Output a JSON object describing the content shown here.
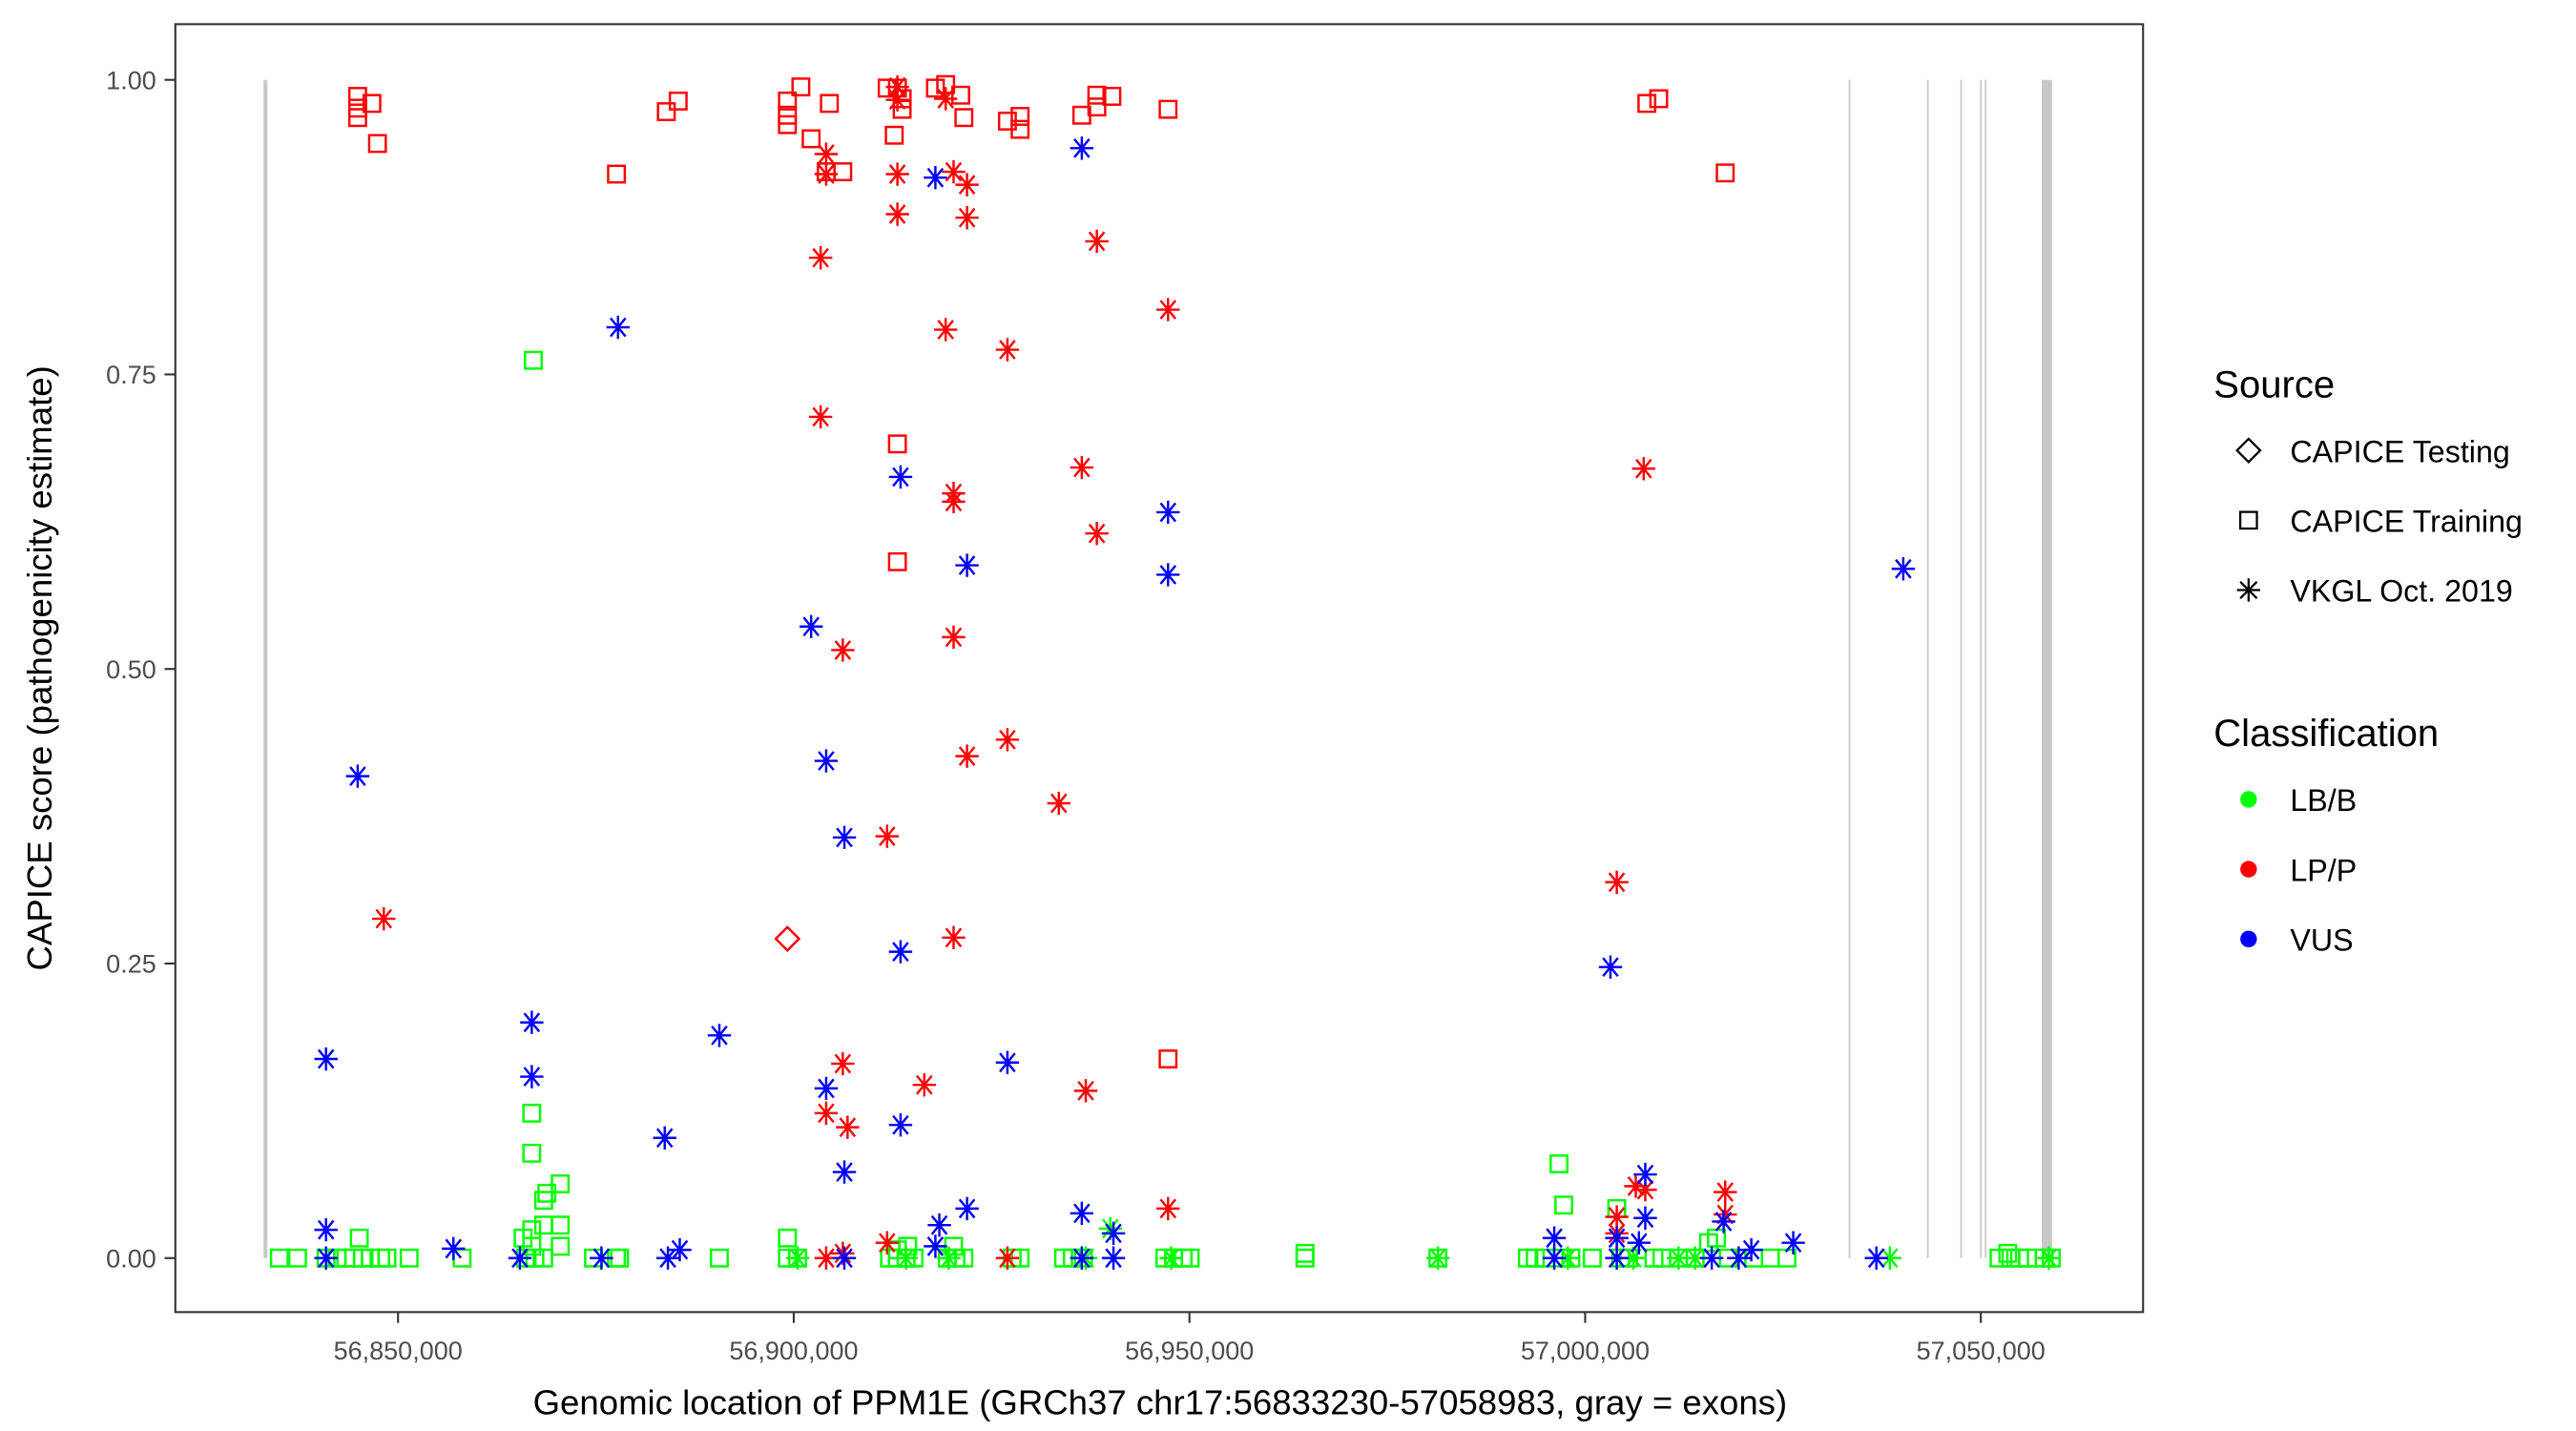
{
  "chart_data": {
    "type": "scatter",
    "xlabel": "Genomic location of PPM1E (GRCh37 chr17:56833230-57058983, gray = exons)",
    "ylabel": "CAPICE score (pathogenicity estimate)",
    "xlim": [
      56826000,
      57077000
    ],
    "ylim": [
      -0.045,
      1.05
    ],
    "grid": false,
    "xticks": [
      {
        "value": 56850000,
        "label": "56,850,000"
      },
      {
        "value": 56900000,
        "label": "56,900,000"
      },
      {
        "value": 56950000,
        "label": "56,950,000"
      },
      {
        "value": 57000000,
        "label": "57,000,000"
      },
      {
        "value": 57050000,
        "label": "57,050,000"
      }
    ],
    "yticks": [
      {
        "value": 0,
        "label": "0.00"
      },
      {
        "value": 0.25,
        "label": "0.25"
      },
      {
        "value": 0.5,
        "label": "0.50"
      },
      {
        "value": 0.75,
        "label": "0.75"
      },
      {
        "value": 1,
        "label": "1.00"
      }
    ],
    "exons": [
      [
        56833000,
        56833500
      ],
      [
        57033300,
        57033500
      ],
      [
        57043200,
        57043400
      ],
      [
        57047400,
        57047600
      ],
      [
        57049900,
        57050100
      ],
      [
        57050500,
        57050700
      ],
      [
        57057700,
        57059000
      ]
    ],
    "exon_color": "#c8c8c8",
    "legend": {
      "placement": "right",
      "source_title": "Source",
      "sources": [
        {
          "name": "CAPICE Testing",
          "shape": "diamond"
        },
        {
          "name": "CAPICE Training",
          "shape": "square"
        },
        {
          "name": "VKGL Oct. 2019",
          "shape": "star"
        }
      ],
      "class_title": "Classification",
      "classes": [
        {
          "name": "LB/B",
          "color": "#00ff00"
        },
        {
          "name": "LP/P",
          "color": "#ff0000"
        },
        {
          "name": "VUS",
          "color": "#0000ff"
        }
      ]
    },
    "series": [
      {
        "source": "CAPICE Training",
        "class": "LB/B",
        "points": [
          [
            56867100,
            0.762
          ],
          [
            56866900,
            0.123
          ],
          [
            56866900,
            0.089
          ],
          [
            56868400,
            0.049
          ],
          [
            56868800,
            0.055
          ],
          [
            56870500,
            0.063
          ],
          [
            56868400,
            0.028
          ],
          [
            56866900,
            0.024
          ],
          [
            56865800,
            0.017
          ],
          [
            56866900,
            0.01
          ],
          [
            56870500,
            0.028
          ],
          [
            56870500,
            0.01
          ],
          [
            56835000,
            0
          ],
          [
            56837300,
            0
          ],
          [
            56840900,
            0
          ],
          [
            56842300,
            0
          ],
          [
            56843400,
            0
          ],
          [
            56844400,
            0
          ],
          [
            56845500,
            0
          ],
          [
            56846500,
            0
          ],
          [
            56847800,
            0
          ],
          [
            56848600,
            0
          ],
          [
            56851400,
            0
          ],
          [
            56858100,
            0
          ],
          [
            56866100,
            0
          ],
          [
            56867300,
            0
          ],
          [
            56868400,
            0
          ],
          [
            56874700,
            0
          ],
          [
            56877600,
            0
          ],
          [
            56878000,
            0
          ],
          [
            56890600,
            0
          ],
          [
            56899200,
            0
          ],
          [
            56900500,
            0
          ],
          [
            56912100,
            0
          ],
          [
            56913100,
            0
          ],
          [
            56914200,
            0
          ],
          [
            56915200,
            0
          ],
          [
            56919400,
            0
          ],
          [
            56920500,
            0
          ],
          [
            56921500,
            0
          ],
          [
            56927600,
            0
          ],
          [
            56928600,
            0
          ],
          [
            56934100,
            0
          ],
          [
            56935200,
            0
          ],
          [
            56936600,
            0
          ],
          [
            56946900,
            0
          ],
          [
            56948000,
            0
          ],
          [
            56949200,
            0
          ],
          [
            56950100,
            0
          ],
          [
            56964600,
            0
          ],
          [
            56981400,
            0
          ],
          [
            56992700,
            0
          ],
          [
            56993700,
            0
          ],
          [
            56995000,
            0
          ],
          [
            56997100,
            0
          ],
          [
            56998200,
            0
          ],
          [
            57000900,
            0
          ],
          [
            57004500,
            0
          ],
          [
            57005500,
            0
          ],
          [
            57008700,
            0
          ],
          [
            57009700,
            0
          ],
          [
            57011800,
            0
          ],
          [
            57013900,
            0
          ],
          [
            57018100,
            0
          ],
          [
            57021300,
            0
          ],
          [
            57023400,
            0
          ],
          [
            57025500,
            0
          ],
          [
            57052300,
            0
          ],
          [
            57053800,
            0
          ],
          [
            57054900,
            0
          ],
          [
            57055900,
            0
          ],
          [
            57058000,
            0
          ],
          [
            57058900,
            0
          ],
          [
            56845100,
            0.017
          ],
          [
            56899200,
            0.017
          ],
          [
            56913100,
            0.007
          ],
          [
            56914400,
            0.01
          ],
          [
            56920200,
            0.01
          ],
          [
            56996700,
            0.08
          ],
          [
            56997300,
            0.045
          ],
          [
            57004000,
            0.042
          ],
          [
            57015600,
            0.013
          ],
          [
            57016600,
            0.017
          ],
          [
            56964600,
            0.004
          ],
          [
            57053400,
            0.004
          ]
        ]
      },
      {
        "source": "VKGL Oct. 2019",
        "class": "LB/B",
        "points": [
          [
            56900500,
            0
          ],
          [
            56914200,
            0
          ],
          [
            56919600,
            0
          ],
          [
            56936900,
            0
          ],
          [
            56940000,
            0.025
          ],
          [
            56947700,
            0
          ],
          [
            56981400,
            0
          ],
          [
            56997800,
            0
          ],
          [
            57006100,
            0
          ],
          [
            57011800,
            0
          ],
          [
            57013900,
            0
          ],
          [
            57038500,
            0
          ],
          [
            57058600,
            0
          ]
        ]
      },
      {
        "source": "CAPICE Training",
        "class": "LP/P",
        "points": [
          [
            56844900,
            0.986
          ],
          [
            56844900,
            0.976
          ],
          [
            56844900,
            0.968
          ],
          [
            56846700,
            0.98
          ],
          [
            56847400,
            0.946
          ],
          [
            56877600,
            0.92
          ],
          [
            56883900,
            0.973
          ],
          [
            56885400,
            0.982
          ],
          [
            56899200,
            0.982
          ],
          [
            56899200,
            0.97
          ],
          [
            56899200,
            0.962
          ],
          [
            56900900,
            0.994
          ],
          [
            56902200,
            0.95
          ],
          [
            56904100,
            0.922
          ],
          [
            56904500,
            0.98
          ],
          [
            56906200,
            0.922
          ],
          [
            56911800,
            0.993
          ],
          [
            56913100,
            0.993
          ],
          [
            56912700,
            0.953
          ],
          [
            56913700,
            0.984
          ],
          [
            56913700,
            0.975
          ],
          [
            56919200,
            0.996
          ],
          [
            56917900,
            0.993
          ],
          [
            56921100,
            0.987
          ],
          [
            56921500,
            0.968
          ],
          [
            56927000,
            0.965
          ],
          [
            56928600,
            0.969
          ],
          [
            56928600,
            0.958
          ],
          [
            56936400,
            0.97
          ],
          [
            56938300,
            0.977
          ],
          [
            56938300,
            0.987
          ],
          [
            56940200,
            0.986
          ],
          [
            56947300,
            0.975
          ],
          [
            57007800,
            0.98
          ],
          [
            57009300,
            0.984
          ],
          [
            57017700,
            0.921
          ],
          [
            56913100,
            0.691
          ],
          [
            56913100,
            0.591
          ],
          [
            56947300,
            0.169
          ]
        ]
      },
      {
        "source": "CAPICE Testing",
        "class": "LP/P",
        "points": [
          [
            56899200,
            0.271
          ]
        ]
      },
      {
        "source": "VKGL Oct. 2019",
        "class": "LP/P",
        "points": [
          [
            56848200,
            0.288
          ],
          [
            56903400,
            0.849
          ],
          [
            56904100,
            0.937
          ],
          [
            56904100,
            0.92
          ],
          [
            56903400,
            0.714
          ],
          [
            56904100,
            0.123
          ],
          [
            56906200,
            0.516
          ],
          [
            56906200,
            0.165
          ],
          [
            56906800,
            0.111
          ],
          [
            56904100,
            0
          ],
          [
            56906200,
            0.004
          ],
          [
            56911800,
            0.358
          ],
          [
            56911800,
            0.013
          ],
          [
            56913100,
            0.994
          ],
          [
            56913100,
            0.983
          ],
          [
            56913100,
            0.92
          ],
          [
            56913100,
            0.886
          ],
          [
            56919200,
            0.788
          ],
          [
            56919200,
            0.984
          ],
          [
            56920200,
            0.922
          ],
          [
            56920200,
            0.649
          ],
          [
            56920200,
            0.642
          ],
          [
            56920200,
            0.527
          ],
          [
            56920200,
            0.272
          ],
          [
            56921900,
            0.911
          ],
          [
            56921900,
            0.883
          ],
          [
            56921900,
            0.426
          ],
          [
            56916500,
            0.147
          ],
          [
            56927000,
            0.771
          ],
          [
            56927000,
            0.44
          ],
          [
            56927000,
            0
          ],
          [
            56933500,
            0.386
          ],
          [
            56936400,
            0.671
          ],
          [
            56936900,
            0.142
          ],
          [
            56938300,
            0.863
          ],
          [
            56938300,
            0.615
          ],
          [
            56947300,
            0.805
          ],
          [
            56947300,
            0.042
          ],
          [
            57004000,
            0.319
          ],
          [
            57007400,
            0.67
          ],
          [
            57006400,
            0.061
          ],
          [
            57007600,
            0.058
          ],
          [
            57004000,
            0.035
          ],
          [
            57004000,
            0.021
          ],
          [
            57017700,
            0.056
          ],
          [
            57017700,
            0.037
          ]
        ]
      },
      {
        "source": "VKGL Oct. 2019",
        "class": "VUS",
        "points": [
          [
            56844900,
            0.409
          ],
          [
            56840900,
            0.169
          ],
          [
            56840900,
            0.024
          ],
          [
            56840900,
            0
          ],
          [
            56857000,
            0.008
          ],
          [
            56865400,
            0
          ],
          [
            56866900,
            0.2
          ],
          [
            56866900,
            0.154
          ],
          [
            56877800,
            0.79
          ],
          [
            56875700,
            0
          ],
          [
            56883700,
            0.102
          ],
          [
            56884100,
            0
          ],
          [
            56885600,
            0.007
          ],
          [
            56890600,
            0.189
          ],
          [
            56902200,
            0.536
          ],
          [
            56904100,
            0.422
          ],
          [
            56904100,
            0.144
          ],
          [
            56906400,
            0.357
          ],
          [
            56906400,
            0.073
          ],
          [
            56906400,
            0
          ],
          [
            56913500,
            0.663
          ],
          [
            56913500,
            0.26
          ],
          [
            56913500,
            0.113
          ],
          [
            56917900,
            0.917
          ],
          [
            56918400,
            0.028
          ],
          [
            56917900,
            0.01
          ],
          [
            56921900,
            0.588
          ],
          [
            56921900,
            0.042
          ],
          [
            56927000,
            0.166
          ],
          [
            56936400,
            0.942
          ],
          [
            56936400,
            0.038
          ],
          [
            56936400,
            0
          ],
          [
            56940400,
            0.021
          ],
          [
            56940400,
            0
          ],
          [
            56947300,
            0.633
          ],
          [
            56947300,
            0.58
          ],
          [
            56996100,
            0.017
          ],
          [
            56996100,
            0
          ],
          [
            57003200,
            0.247
          ],
          [
            57004000,
            0.017
          ],
          [
            57004000,
            0
          ],
          [
            57007600,
            0.071
          ],
          [
            57007600,
            0.034
          ],
          [
            57006800,
            0.013
          ],
          [
            57016000,
            0
          ],
          [
            57017500,
            0.031
          ],
          [
            57019400,
            0
          ],
          [
            57021000,
            0.007
          ],
          [
            57026300,
            0.013
          ],
          [
            57036800,
            0
          ],
          [
            57040200,
            0.585
          ]
        ]
      }
    ]
  }
}
